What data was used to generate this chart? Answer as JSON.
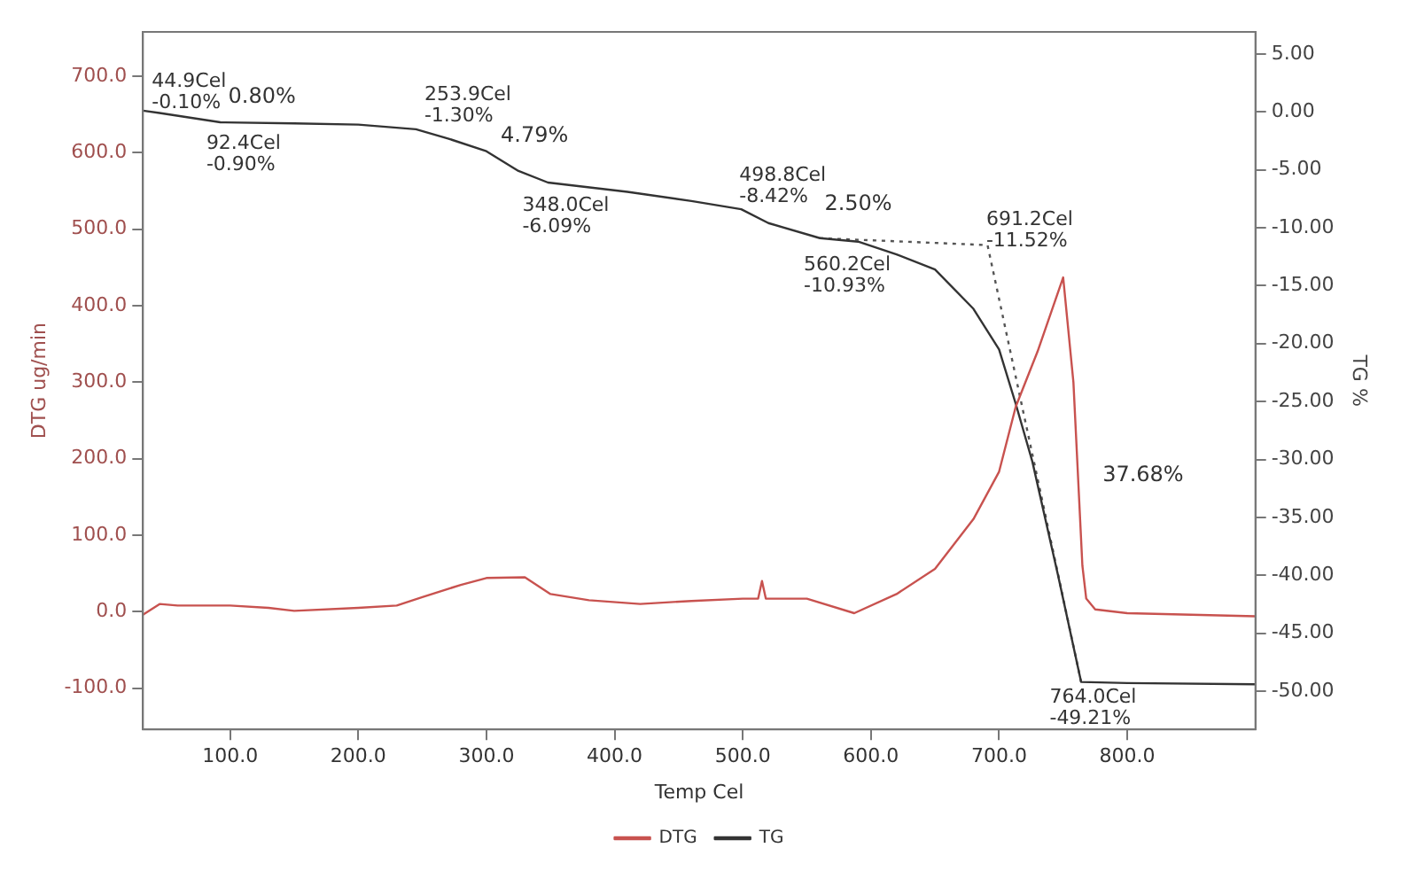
{
  "chart_data": {
    "type": "line",
    "xlabel": "Temp Cel",
    "ylabel": "DTG ug/min",
    "y2label": "TG %",
    "xlim": [
      32,
      900
    ],
    "xticks": [
      {
        "value": 100,
        "label": "100.0"
      },
      {
        "value": 200,
        "label": "200.0"
      },
      {
        "value": 300,
        "label": "300.0"
      },
      {
        "value": 400,
        "label": "400.0"
      },
      {
        "value": 500,
        "label": "500.0"
      },
      {
        "value": 600,
        "label": "600.0"
      },
      {
        "value": 700,
        "label": "700.0"
      },
      {
        "value": 800,
        "label": "800.0"
      }
    ],
    "ylim": [
      -154,
      758
    ],
    "yticks": [
      {
        "value": -100,
        "label": "-100.0"
      },
      {
        "value": 0,
        "label": "0.0"
      },
      {
        "value": 100,
        "label": "100.0"
      },
      {
        "value": 200,
        "label": "200.0"
      },
      {
        "value": 300,
        "label": "300.0"
      },
      {
        "value": 400,
        "label": "400.0"
      },
      {
        "value": 500,
        "label": "500.0"
      },
      {
        "value": 600,
        "label": "600.0"
      },
      {
        "value": 700,
        "label": "700.0"
      }
    ],
    "y2lim": [
      -53.3,
      6.9
    ],
    "y2ticks": [
      {
        "value": -50,
        "label": "-50.00"
      },
      {
        "value": -45,
        "label": "-45.00"
      },
      {
        "value": -40,
        "label": "-40.00"
      },
      {
        "value": -35,
        "label": "-35.00"
      },
      {
        "value": -30,
        "label": "-30.00"
      },
      {
        "value": -25,
        "label": "-25.00"
      },
      {
        "value": -20,
        "label": "-20.00"
      },
      {
        "value": -15,
        "label": "-15.00"
      },
      {
        "value": -10,
        "label": "-10.00"
      },
      {
        "value": -5,
        "label": "-5.00"
      },
      {
        "value": 0,
        "label": "0.00"
      },
      {
        "value": 5,
        "label": "5.00"
      }
    ],
    "grid": false,
    "legend": "bottom",
    "marker": "none",
    "series": [
      {
        "name": "DTG",
        "axis": "y",
        "color": "#c8524f",
        "x": [
          32,
          45,
          59,
          100,
          130,
          150,
          200,
          230,
          250,
          280,
          300,
          330,
          350,
          380,
          420,
          460,
          500,
          512,
          515,
          518,
          550,
          587,
          620,
          650,
          680,
          700,
          713,
          730,
          750,
          758,
          765,
          768,
          775,
          800,
          900
        ],
        "values": [
          -4,
          10,
          8,
          8,
          5,
          1,
          5,
          8,
          19,
          35,
          44,
          45,
          23,
          15,
          10,
          14,
          17,
          17,
          40,
          17,
          17,
          -2,
          23,
          56,
          121,
          183,
          268,
          340,
          437,
          300,
          60,
          17,
          3,
          -2,
          -6
        ]
      },
      {
        "name": "TG",
        "axis": "y2",
        "color": "#333333",
        "x": [
          32,
          44.9,
          92.4,
          150,
          200,
          245,
          270,
          300,
          325,
          348,
          410,
          460,
          498.8,
          520,
          560.2,
          590,
          620,
          650,
          680,
          700,
          713,
          726,
          746,
          764,
          800,
          900
        ],
        "values": [
          0.1,
          -0.1,
          -0.9,
          -1.0,
          -1.1,
          -1.5,
          -2.3,
          -3.4,
          -5.1,
          -6.1,
          -6.9,
          -7.7,
          -8.4,
          -9.6,
          -10.9,
          -11.2,
          -12.3,
          -13.6,
          -17,
          -20.5,
          -25.2,
          -30.2,
          -40,
          -49.2,
          -49.3,
          -49.4
        ]
      },
      {
        "axis": "y2",
        "color": "#555555",
        "line_style": "dotted",
        "x": [
          560,
          691,
          764
        ],
        "values": [
          -10.9,
          -11.5,
          -49.2
        ]
      }
    ],
    "annotations": [
      "44.9Cel\n-0.10%",
      "92.4Cel\n-0.90%",
      "253.9Cel\n-1.30%",
      "348.0Cel\n-6.09%",
      "498.8Cel\n-8.42%",
      "560.2Cel\n-10.93%",
      "691.2Cel\n-11.52%",
      "764.0Cel\n-49.21%",
      "0.80%",
      "4.79%",
      "2.50%",
      "37.68%"
    ]
  }
}
